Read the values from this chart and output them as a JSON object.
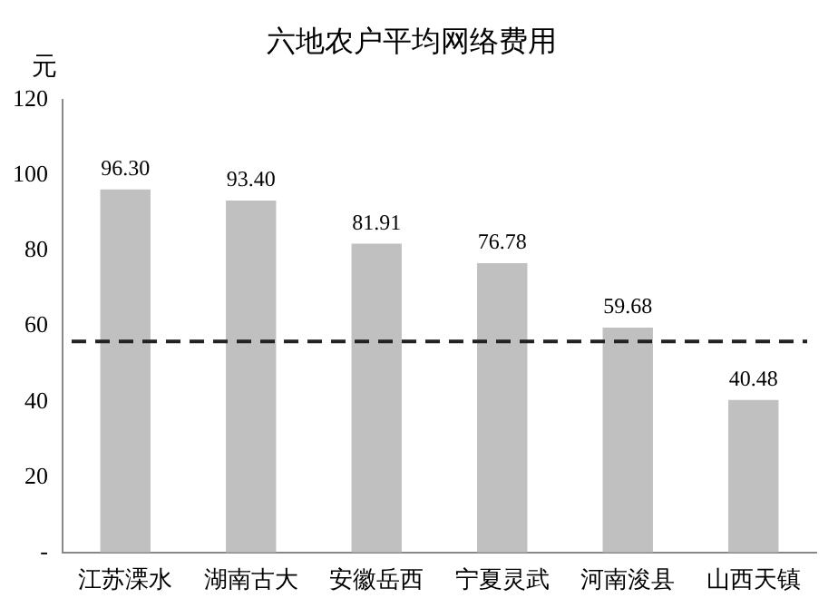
{
  "chart_data": {
    "type": "bar",
    "title": "六地农户平均网络费用",
    "ylabel": "元",
    "categories": [
      "江苏溧水",
      "湖南古大",
      "安徽岳西",
      "宁夏灵武",
      "河南浚县",
      "山西天镇"
    ],
    "values": [
      96.3,
      93.4,
      81.91,
      76.78,
      59.68,
      40.48
    ],
    "value_labels": [
      "96.30",
      "93.40",
      "81.91",
      "76.78",
      "59.68",
      "40.48"
    ],
    "color": "#c0c0c0",
    "ylim": [
      0,
      120
    ],
    "yticks": [
      {
        "value": 0,
        "label": "-"
      },
      20,
      40,
      60,
      80,
      100,
      120
    ],
    "ref_lines": [
      {
        "axis": "y",
        "value": 56,
        "color": "#222222",
        "line_style": "dashed"
      }
    ],
    "grid": false,
    "legend": false
  }
}
